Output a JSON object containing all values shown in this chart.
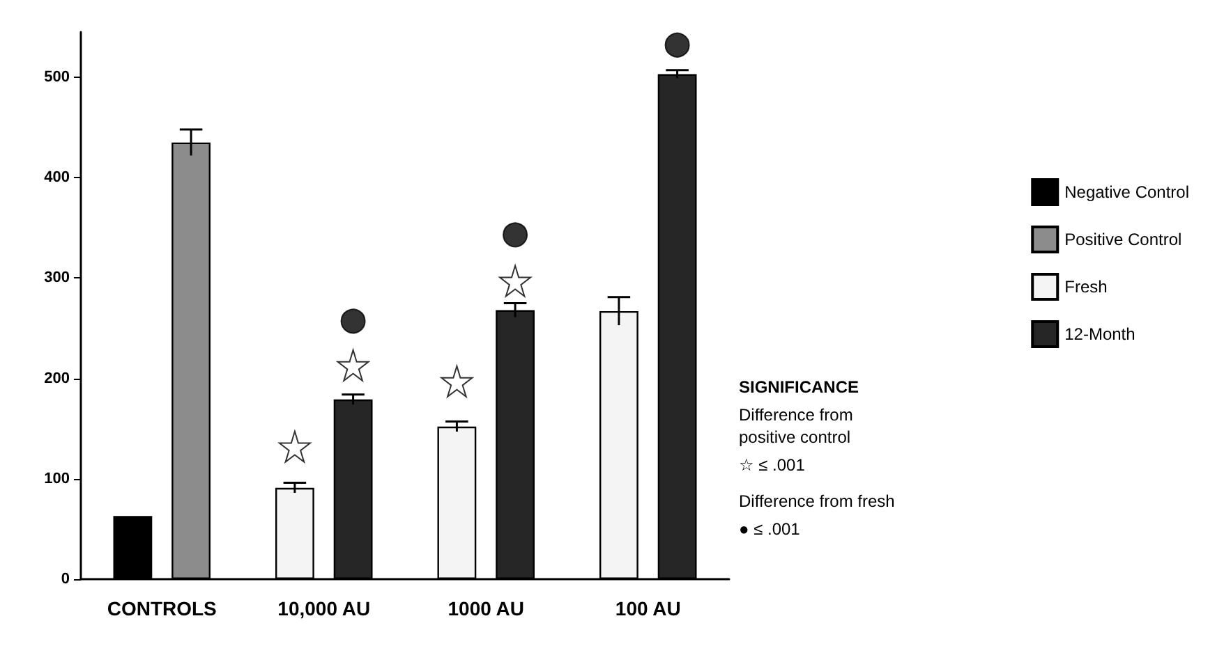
{
  "chart_data": {
    "type": "bar",
    "categories": [
      "CONTROLS",
      "10,000 AU",
      "1000 AU",
      "100 AU"
    ],
    "series": [
      {
        "name": "Negative Control",
        "color": "#000000",
        "values": [
          63,
          null,
          null,
          null
        ],
        "errors": [
          null,
          null,
          null,
          null
        ]
      },
      {
        "name": "Positive Control",
        "color": "#8c8c8c",
        "values": [
          435,
          null,
          null,
          null
        ],
        "errors": [
          13,
          null,
          null,
          null
        ]
      },
      {
        "name": "Fresh",
        "color": "#f4f4f4",
        "values": [
          null,
          91,
          152,
          267
        ],
        "errors": [
          null,
          5,
          5,
          14
        ]
      },
      {
        "name": "12-Month",
        "color": "#262626",
        "values": [
          null,
          179,
          268,
          503
        ],
        "errors": [
          null,
          5,
          7,
          4
        ]
      },
      {
        "type": "scatter",
        "marker": "star",
        "color": "#ffffff",
        "x": [
          "10,000 AU",
          "10,000 AU",
          "1000 AU",
          "1000 AU"
        ],
        "values": [
          132,
          213,
          197,
          297
        ]
      },
      {
        "type": "scatter",
        "marker": "circle",
        "color": "#000000",
        "x": [
          "10,000 AU",
          "1000 AU",
          "100 AU"
        ],
        "values": [
          257,
          343,
          532
        ]
      }
    ],
    "ylim": [
      0,
      545
    ],
    "yticks": [
      0,
      100,
      200,
      300,
      400,
      500
    ],
    "grid": false,
    "legend": "right",
    "annotations": [
      "SIGNIFICANCE",
      "Difference from positive control",
      "☆ ≤ .001",
      "Difference from fresh",
      "● ≤ .001"
    ]
  }
}
